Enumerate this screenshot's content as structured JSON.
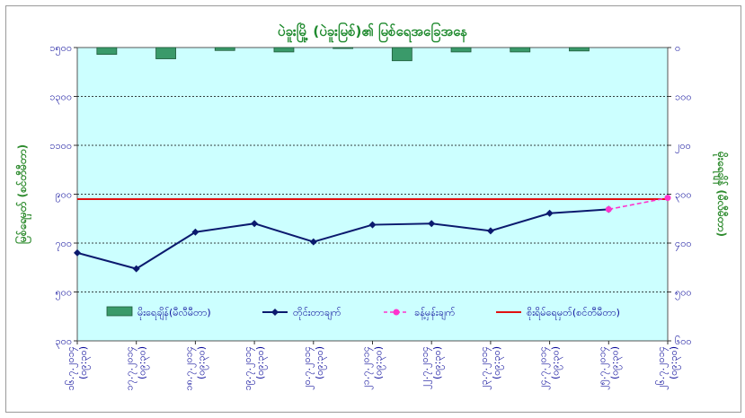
{
  "colors": {
    "plot_bg": "#ccffff",
    "rainfall_bar": "#3a9a6a",
    "water_level_line": "#0b1a6e",
    "forecast_line": "#ff33cc",
    "danger_level_line": "#e01010",
    "axis_text": "#0b0b9a",
    "title_text": "#1f8a2e"
  },
  "chart_data": {
    "type": "bar+line",
    "title": "ပဲခူးမြို့ (ပဲခူးမြစ်)၏ မြစ်ရေအခြေအနေ",
    "ylabel_left": "မြစ်ရေမှတ် (စင်တီမီတာ)",
    "ylabel_right": "မိုးရေချိန် (မီလီမီတာ)",
    "y_left": {
      "min": 300,
      "max": 1500,
      "ticks": [
        300,
        500,
        700,
        900,
        1100,
        1300,
        1500
      ],
      "tick_labels": [
        "၃၀၀",
        "၅၀၀",
        "၇၀၀",
        "၉၀၀",
        "၁၁၀၀",
        "၁၃၀၀",
        "၁၅၀၀"
      ]
    },
    "y_right": {
      "min": 0,
      "max": 600,
      "inverted": true,
      "ticks": [
        0,
        100,
        200,
        300,
        400,
        500,
        600
      ],
      "tick_labels": [
        "၀",
        "၁၀၀",
        "၂၀၀",
        "၃၀၀",
        "၄၀၀",
        "၅၀၀",
        "၆၀၀"
      ]
    },
    "categories": [
      [
        "၁၆.၇.၂၀၁၄",
        "(၀၉:၃၀)"
      ],
      [
        "၁၇.၇.၂၀၁၄",
        "(၀၉:၃၀)"
      ],
      [
        "၁၈.၇.၂၀၁၄",
        "(၀၉:၃၀)"
      ],
      [
        "၁၉.၇.၂၀၁၄",
        "(၀၉:၃၀)"
      ],
      [
        "၂၀.၇.၂၀၁၄",
        "(၀၉:၃၀)"
      ],
      [
        "၂၁.၇.၂၀၁၄",
        "(၀၉:၃၀)"
      ],
      [
        "၂၂.၇.၂၀၁၄",
        "(၀၉:၃၀)"
      ],
      [
        "၂၃.၇.၂၀၁၄",
        "(၀၉:၃၀)"
      ],
      [
        "၂၄.၇.၂၀၁၄",
        "(၀၉:၃၀)"
      ],
      [
        "၂၅.၇.၂၀၁၄",
        "(၀၉:၃၀)"
      ],
      [
        "၂၆.၇.၂၀၁၄",
        "(၀၉:၃၀)"
      ]
    ],
    "series": [
      {
        "name": "မိုးရေချိန်(မီလီမီတာ)",
        "kind": "bar",
        "axis": "right",
        "values": [
          14,
          23,
          6,
          9,
          2,
          27,
          9,
          9,
          7,
          null,
          null
        ]
      },
      {
        "name": "တိုင်းတာချက်",
        "kind": "line",
        "axis": "left",
        "values": [
          660,
          595,
          745,
          780,
          705,
          775,
          780,
          750,
          822,
          838,
          null
        ]
      },
      {
        "name": "ခန့်မှန်းချက်",
        "kind": "forecast",
        "axis": "left",
        "values": [
          null,
          null,
          null,
          null,
          null,
          null,
          null,
          null,
          null,
          838,
          885
        ]
      },
      {
        "name": "စိုးရိမ်ရေမှတ်(စင်တီမီတာ)",
        "kind": "hline",
        "axis": "left",
        "value": 880
      }
    ],
    "grid": true,
    "legend_position": "bottom-inside"
  }
}
